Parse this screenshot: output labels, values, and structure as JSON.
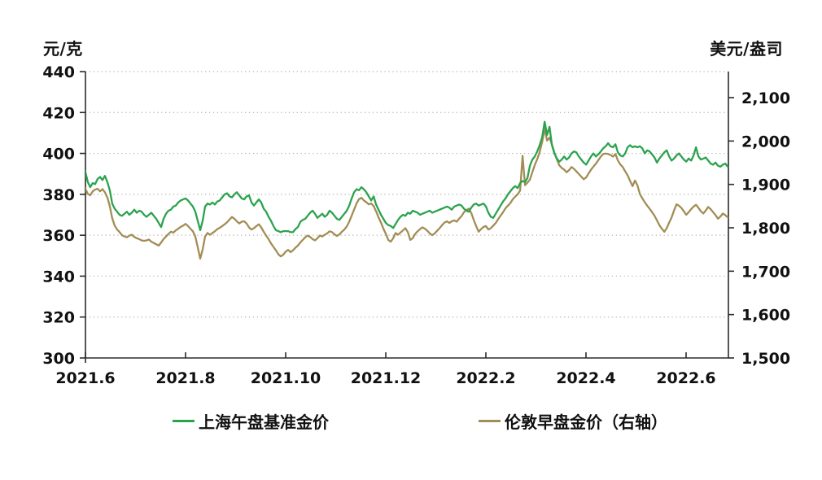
{
  "chart": {
    "left_axis_unit": "元/克",
    "right_axis_unit": "美元/盎司"
  },
  "legend": {
    "items": [
      {
        "label": "上海午盘基准金价",
        "color": "#2ba34e"
      },
      {
        "label": "伦敦早盘金价（右轴）",
        "color": "#a28d55"
      }
    ]
  },
  "chart_data": {
    "type": "line",
    "title": "",
    "grid": "dotted horizontal",
    "legend_position": "bottom",
    "x_axis": {
      "unit": "year.month",
      "tick_labels": [
        "2021.6",
        "2021.8",
        "2021.10",
        "2021.12",
        "2022.2",
        "2022.4",
        "2022.6"
      ],
      "tick_months_from_start": [
        0,
        2,
        4,
        6,
        8,
        10,
        12
      ],
      "range_months": [
        0,
        12.85
      ]
    },
    "left_axis": {
      "unit": "元/克",
      "min": 300,
      "max": 440,
      "tick_values": [
        300,
        320,
        340,
        360,
        380,
        400,
        420,
        440
      ],
      "tick_labels": [
        "300",
        "320",
        "340",
        "360",
        "380",
        "400",
        "420",
        "440"
      ]
    },
    "right_axis": {
      "unit": "美元/盎司",
      "scale_min": 1500,
      "scale_max": 2160,
      "tick_values": [
        1500,
        1600,
        1700,
        1800,
        1900,
        2000,
        2100
      ],
      "tick_labels": [
        "1,500",
        "1,600",
        "1,700",
        "1,800",
        "1,900",
        "2,000",
        "2,100"
      ]
    },
    "gridline_left_values": [
      320,
      340,
      360,
      380,
      400,
      420,
      440
    ],
    "series": [
      {
        "name": "上海午盘基准金价",
        "axis": "left",
        "color": "#2ba34e",
        "x_start_months": -0.05,
        "x_step_months": 0.0488,
        "values": [
          393.5,
          391,
          386,
          383.5,
          385.5,
          385,
          387.5,
          388.5,
          387,
          389,
          386,
          382,
          375.5,
          373,
          371.5,
          370,
          369.5,
          370.5,
          371.5,
          370,
          371,
          372.5,
          371,
          372,
          371.5,
          370,
          369,
          370,
          371,
          369.5,
          368,
          366,
          364,
          368,
          370.5,
          372,
          372.5,
          374,
          374.5,
          376,
          377,
          377.5,
          378,
          377,
          375.5,
          374,
          371.5,
          367,
          362.5,
          367,
          374,
          375.5,
          375,
          376,
          375,
          376.5,
          377,
          378.5,
          380,
          380.5,
          379,
          378.5,
          380,
          381,
          379.5,
          378,
          377.5,
          379,
          379.5,
          376,
          374.5,
          376,
          377.5,
          376,
          373,
          371.5,
          369,
          367,
          364.5,
          362.5,
          362,
          361.5,
          362,
          362,
          362,
          361.5,
          361.5,
          363,
          364,
          366.5,
          367.5,
          368,
          369.5,
          371,
          372,
          370.5,
          368.5,
          369.5,
          370.5,
          369,
          370,
          372,
          371,
          369.5,
          368,
          367.5,
          369,
          370.5,
          372,
          374.5,
          378,
          381,
          382.5,
          382,
          383.5,
          382.5,
          381,
          379,
          377,
          379,
          375,
          372.5,
          370,
          368,
          366,
          365,
          364.5,
          363.5,
          365.5,
          367.5,
          369,
          370,
          369.5,
          371,
          370.5,
          372,
          371.5,
          371,
          370,
          370.5,
          371,
          371.5,
          372,
          371,
          371.5,
          372,
          372.5,
          373,
          373.5,
          374,
          373.5,
          372.5,
          374,
          374.5,
          375,
          374.5,
          373,
          372,
          371.5,
          373.5,
          375,
          375.5,
          374.5,
          375,
          375.5,
          374,
          371,
          369,
          368.5,
          370.5,
          372.5,
          374.5,
          376.5,
          378,
          380,
          381.5,
          383,
          384,
          383,
          385.5,
          386.5,
          386,
          388,
          394,
          397,
          398.5,
          401,
          404,
          408,
          415.5,
          409,
          413,
          404,
          400,
          397.5,
          396,
          397,
          398.5,
          397,
          398,
          400,
          401,
          400.5,
          398.5,
          397,
          395.5,
          394.5,
          396.5,
          398.5,
          400,
          398.5,
          399.5,
          401,
          402.5,
          403.5,
          405,
          403.5,
          403,
          404.5,
          400.5,
          399,
          398.5,
          400,
          403,
          404,
          403,
          403.5,
          403,
          403.5,
          402.5,
          400,
          401.5,
          401,
          399.5,
          398,
          395.5,
          397.5,
          399,
          400.5,
          401.5,
          398.5,
          396.5,
          397.5,
          399,
          400,
          398.5,
          397,
          396,
          397.5,
          396.5,
          399,
          403,
          398.5,
          397,
          397.5,
          398,
          396.5,
          395,
          394.5,
          395.5,
          394,
          393.5,
          394.5,
          395,
          393.5,
          392.5,
          391,
          389.5
        ]
      },
      {
        "name": "伦敦早盘金价（右轴）",
        "axis": "right",
        "color": "#a28d55",
        "x_start_months": -0.05,
        "x_step_months": 0.0488,
        "values": [
          1905,
          1890,
          1878,
          1875,
          1884,
          1888,
          1890,
          1884,
          1889,
          1882,
          1870,
          1850,
          1822,
          1805,
          1796,
          1790,
          1783,
          1780,
          1778,
          1782,
          1784,
          1779,
          1776,
          1774,
          1771,
          1770,
          1771,
          1773,
          1768,
          1765,
          1762,
          1759,
          1766,
          1774,
          1780,
          1786,
          1791,
          1789,
          1794,
          1798,
          1802,
          1805,
          1809,
          1804,
          1798,
          1792,
          1780,
          1755,
          1729,
          1750,
          1780,
          1788,
          1784,
          1788,
          1792,
          1797,
          1800,
          1804,
          1808,
          1813,
          1819,
          1825,
          1821,
          1815,
          1810,
          1814,
          1815,
          1810,
          1801,
          1796,
          1799,
          1804,
          1808,
          1801,
          1791,
          1782,
          1774,
          1764,
          1756,
          1748,
          1739,
          1734,
          1738,
          1745,
          1749,
          1744,
          1748,
          1754,
          1759,
          1766,
          1772,
          1778,
          1782,
          1779,
          1774,
          1771,
          1776,
          1782,
          1780,
          1784,
          1787,
          1792,
          1790,
          1785,
          1781,
          1785,
          1791,
          1796,
          1803,
          1814,
          1828,
          1842,
          1856,
          1866,
          1869,
          1863,
          1859,
          1854,
          1856,
          1850,
          1838,
          1824,
          1812,
          1798,
          1786,
          1772,
          1768,
          1776,
          1788,
          1784,
          1789,
          1794,
          1799,
          1790,
          1772,
          1776,
          1786,
          1792,
          1797,
          1801,
          1798,
          1793,
          1787,
          1783,
          1787,
          1793,
          1799,
          1806,
          1812,
          1815,
          1811,
          1815,
          1817,
          1814,
          1821,
          1827,
          1836,
          1841,
          1844,
          1834,
          1818,
          1804,
          1791,
          1797,
          1802,
          1804,
          1796,
          1799,
          1805,
          1811,
          1820,
          1828,
          1836,
          1845,
          1851,
          1857,
          1866,
          1872,
          1877,
          1886,
          1966,
          1898,
          1904,
          1911,
          1928,
          1945,
          1958,
          1975,
          1998,
          2028,
          2001,
          2008,
          1992,
          1973,
          1958,
          1944,
          1938,
          1934,
          1928,
          1933,
          1940,
          1936,
          1930,
          1924,
          1918,
          1912,
          1916,
          1925,
          1934,
          1941,
          1948,
          1956,
          1964,
          1970,
          1971,
          1970,
          1968,
          1964,
          1970,
          1955,
          1946,
          1940,
          1930,
          1921,
          1908,
          1896,
          1909,
          1898,
          1878,
          1868,
          1859,
          1851,
          1844,
          1836,
          1828,
          1817,
          1806,
          1798,
          1791,
          1799,
          1812,
          1824,
          1840,
          1854,
          1851,
          1846,
          1838,
          1830,
          1836,
          1843,
          1849,
          1853,
          1846,
          1838,
          1833,
          1840,
          1848,
          1843,
          1836,
          1829,
          1821,
          1826,
          1833,
          1829,
          1824,
          1820,
          1812,
          1797
        ]
      }
    ]
  }
}
